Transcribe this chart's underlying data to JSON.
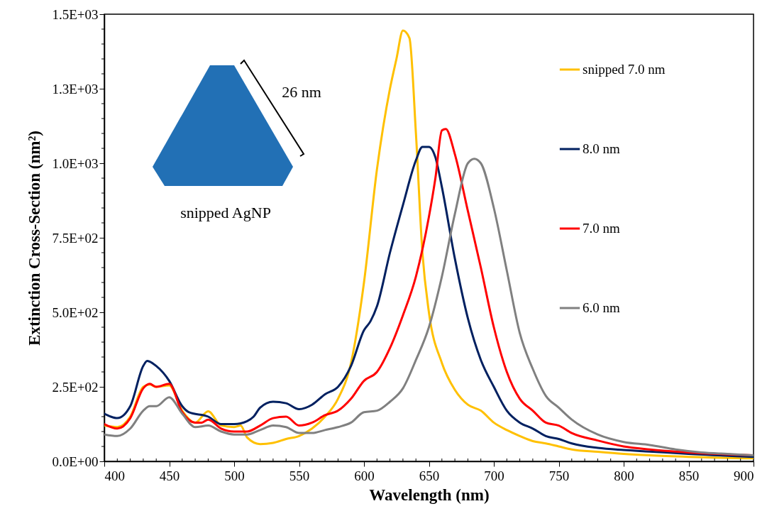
{
  "chart_data": {
    "type": "line",
    "xlabel": "Wavelength (nm)",
    "ylabel": "Extinction Cross-Section (nm²)",
    "xlim": [
      400,
      900
    ],
    "ylim": [
      0,
      1500
    ],
    "xticks": [
      400,
      450,
      500,
      550,
      600,
      650,
      700,
      750,
      800,
      850,
      900
    ],
    "yticks": [
      {
        "value": 0,
        "label": "0.0E+00"
      },
      {
        "value": 250,
        "label": "2.5E+02"
      },
      {
        "value": 500,
        "label": "5.0E+02"
      },
      {
        "value": 750,
        "label": "7.5E+02"
      },
      {
        "value": 1000,
        "label": "1.0E+03"
      },
      {
        "value": 1250,
        "label": "1.3E+03"
      },
      {
        "value": 1500,
        "label": "1.5E+03"
      }
    ],
    "grid": false,
    "legend": "top right",
    "line_style": "solid",
    "marker": "none",
    "annotations": [
      "26 nm",
      "snipped AgNP"
    ],
    "series": [
      {
        "name": "snipped 7.0 nm",
        "color": "#ffc000",
        "x": [
          400,
          410,
          420,
          430,
          435,
          440,
          450,
          460,
          470,
          480,
          490,
          500,
          505,
          510,
          520,
          530,
          540,
          550,
          560,
          570,
          580,
          590,
          600,
          610,
          620,
          625,
          630,
          635,
          640,
          645,
          650,
          660,
          670,
          680,
          690,
          700,
          710,
          720,
          730,
          740,
          750,
          760,
          780,
          800,
          820,
          850,
          900
        ],
        "values": [
          120,
          115,
          150,
          250,
          258,
          250,
          255,
          170,
          130,
          168,
          120,
          115,
          120,
          80,
          58,
          62,
          75,
          85,
          110,
          150,
          210,
          330,
          600,
          980,
          1250,
          1350,
          1445,
          1420,
          1100,
          700,
          500,
          330,
          240,
          190,
          170,
          130,
          105,
          85,
          68,
          60,
          50,
          40,
          32,
          25,
          20,
          15,
          10
        ]
      },
      {
        "name": "8.0 nm",
        "color": "#002060",
        "x": [
          400,
          405,
          410,
          420,
          430,
          433,
          440,
          450,
          460,
          465,
          480,
          490,
          500,
          510,
          515,
          520,
          530,
          540,
          550,
          560,
          570,
          580,
          590,
          600,
          605,
          610,
          620,
          630,
          640,
          645,
          650,
          655,
          660,
          670,
          680,
          690,
          700,
          710,
          720,
          730,
          740,
          750,
          760,
          780,
          800,
          820,
          850,
          900
        ],
        "values": [
          160,
          150,
          145,
          185,
          320,
          337,
          320,
          270,
          185,
          165,
          150,
          125,
          125,
          135,
          150,
          180,
          200,
          195,
          175,
          190,
          225,
          250,
          320,
          440,
          470,
          520,
          700,
          860,
          1010,
          1055,
          1055,
          1020,
          920,
          680,
          480,
          340,
          250,
          170,
          130,
          110,
          85,
          75,
          60,
          45,
          38,
          33,
          25,
          15
        ]
      },
      {
        "name": "7.0 nm",
        "color": "#ff0000",
        "x": [
          400,
          410,
          420,
          430,
          435,
          440,
          450,
          460,
          470,
          475,
          480,
          490,
          500,
          510,
          520,
          530,
          540,
          550,
          560,
          570,
          580,
          590,
          600,
          610,
          620,
          630,
          640,
          650,
          655,
          660,
          663,
          670,
          680,
          690,
          700,
          710,
          720,
          730,
          740,
          750,
          760,
          780,
          800,
          820,
          850,
          900
        ],
        "values": [
          125,
          110,
          145,
          245,
          260,
          250,
          260,
          165,
          130,
          130,
          140,
          110,
          100,
          100,
          120,
          145,
          150,
          120,
          130,
          155,
          170,
          210,
          270,
          300,
          380,
          490,
          620,
          820,
          950,
          1110,
          1115,
          1030,
          840,
          650,
          450,
          300,
          210,
          170,
          130,
          120,
          95,
          70,
          50,
          40,
          30,
          20
        ]
      },
      {
        "name": "6.0 nm",
        "color": "#808080",
        "x": [
          400,
          410,
          420,
          430,
          435,
          440,
          450,
          460,
          470,
          480,
          490,
          500,
          510,
          520,
          530,
          540,
          550,
          560,
          570,
          580,
          590,
          600,
          610,
          620,
          630,
          640,
          650,
          660,
          670,
          680,
          685,
          690,
          700,
          710,
          720,
          730,
          740,
          750,
          760,
          780,
          800,
          820,
          840,
          860,
          880,
          900
        ],
        "values": [
          90,
          85,
          110,
          170,
          185,
          185,
          215,
          160,
          115,
          120,
          100,
          90,
          90,
          105,
          120,
          115,
          95,
          95,
          105,
          115,
          130,
          165,
          170,
          200,
          245,
          340,
          450,
          620,
          830,
          1000,
          1015,
          1000,
          850,
          640,
          430,
          310,
          220,
          180,
          140,
          90,
          65,
          55,
          40,
          30,
          25,
          20
        ]
      }
    ]
  }
}
